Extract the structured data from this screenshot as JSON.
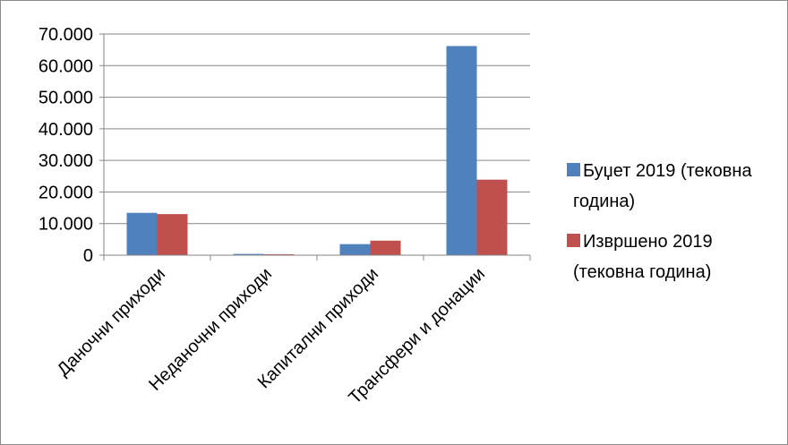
{
  "chart_data": {
    "type": "bar",
    "categories": [
      "Даночни приходи",
      "Неданочни приходи",
      "Капитални приходи",
      "Трансфери и донации"
    ],
    "series": [
      {
        "name": "Буџет 2019 (тековна година)",
        "legend_lines": [
          "Буџет 2019 (тековна",
          "година)"
        ],
        "color": "#4f81bd",
        "values": [
          13400,
          400,
          3500,
          66200
        ]
      },
      {
        "name": "Извршено 2019 (тековна година)",
        "legend_lines": [
          "Извршено 2019",
          "(тековна година)"
        ],
        "color": "#c0504d",
        "values": [
          13000,
          300,
          4600,
          23900
        ]
      }
    ],
    "ylim": [
      0,
      70000
    ],
    "yticks": [
      0,
      10000,
      20000,
      30000,
      40000,
      50000,
      60000,
      70000
    ],
    "ytick_labels": [
      "0",
      "10.000",
      "20.000",
      "30.000",
      "40.000",
      "50.000",
      "60.000",
      "70.000"
    ],
    "grid": true,
    "legend_position": "right"
  }
}
